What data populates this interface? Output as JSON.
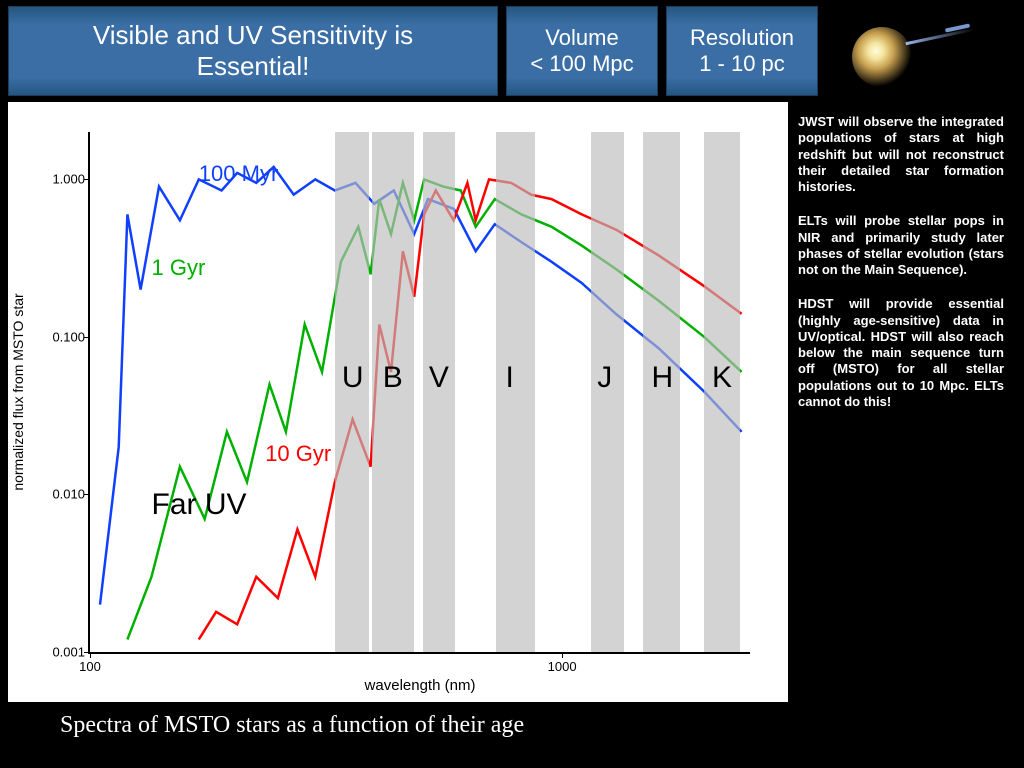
{
  "header": {
    "title_line1": "Visible and UV Sensitivity is",
    "title_line2": "Essential!",
    "volume_line1": "Volume",
    "volume_line2": "< 100 Mpc",
    "resolution_line1": "Resolution",
    "resolution_line2": "1 - 10 pc"
  },
  "colors": {
    "header_bg": "#3a6ea5",
    "bg": "#000000",
    "chart_bg": "#ffffff",
    "band": "#bbbbbb",
    "series_100myr": "#1040ff",
    "series_1gyr": "#00b000",
    "series_10gyr": "#ff0000"
  },
  "chart": {
    "type": "line",
    "title": "",
    "xlabel": "wavelength (nm)",
    "ylabel": "normalized flux from MSTO star",
    "xscale": "log",
    "yscale": "log",
    "xlim": [
      100,
      2500
    ],
    "ylim": [
      0.001,
      2.0
    ],
    "xticks": [
      100,
      1000
    ],
    "xtick_labels": [
      "100",
      "1000"
    ],
    "yticks": [
      1.0,
      0.1,
      0.01,
      0.001
    ],
    "ytick_labels": [
      "1.000",
      "0.100",
      "0.010",
      "0.001"
    ],
    "filter_bands": [
      {
        "name": "U",
        "center_nm": 360,
        "width_nm": 60
      },
      {
        "name": "B",
        "center_nm": 440,
        "width_nm": 90
      },
      {
        "name": "V",
        "center_nm": 550,
        "width_nm": 85
      },
      {
        "name": "I",
        "center_nm": 800,
        "width_nm": 150
      },
      {
        "name": "J",
        "center_nm": 1250,
        "width_nm": 200
      },
      {
        "name": "H",
        "center_nm": 1630,
        "width_nm": 290
      },
      {
        "name": "K",
        "center_nm": 2190,
        "width_nm": 390
      }
    ],
    "series": [
      {
        "name": "100 Myr",
        "color_key": "series_100myr",
        "label_pos_nm": 170,
        "label_pos_flux": 1.3,
        "points_nm_flux": [
          [
            105,
            0.002
          ],
          [
            115,
            0.02
          ],
          [
            120,
            0.6
          ],
          [
            128,
            0.2
          ],
          [
            140,
            0.9
          ],
          [
            155,
            0.55
          ],
          [
            170,
            1.0
          ],
          [
            190,
            0.85
          ],
          [
            205,
            1.1
          ],
          [
            225,
            0.95
          ],
          [
            245,
            1.2
          ],
          [
            270,
            0.8
          ],
          [
            300,
            1.0
          ],
          [
            330,
            0.85
          ],
          [
            365,
            0.95
          ],
          [
            400,
            0.7
          ],
          [
            440,
            0.85
          ],
          [
            486,
            0.45
          ],
          [
            520,
            0.75
          ],
          [
            590,
            0.65
          ],
          [
            656,
            0.35
          ],
          [
            720,
            0.52
          ],
          [
            820,
            0.4
          ],
          [
            950,
            0.3
          ],
          [
            1100,
            0.22
          ],
          [
            1300,
            0.14
          ],
          [
            1600,
            0.085
          ],
          [
            2000,
            0.045
          ],
          [
            2400,
            0.025
          ]
        ]
      },
      {
        "name": "1 Gyr",
        "color_key": "series_1gyr",
        "label_pos_nm": 135,
        "label_pos_flux": 0.33,
        "points_nm_flux": [
          [
            120,
            0.0012
          ],
          [
            135,
            0.003
          ],
          [
            155,
            0.015
          ],
          [
            175,
            0.007
          ],
          [
            195,
            0.025
          ],
          [
            215,
            0.012
          ],
          [
            240,
            0.05
          ],
          [
            260,
            0.025
          ],
          [
            285,
            0.12
          ],
          [
            310,
            0.06
          ],
          [
            340,
            0.3
          ],
          [
            370,
            0.5
          ],
          [
            393,
            0.25
          ],
          [
            410,
            0.75
          ],
          [
            434,
            0.45
          ],
          [
            460,
            0.95
          ],
          [
            486,
            0.55
          ],
          [
            510,
            1.0
          ],
          [
            560,
            0.9
          ],
          [
            610,
            0.85
          ],
          [
            656,
            0.5
          ],
          [
            720,
            0.75
          ],
          [
            820,
            0.6
          ],
          [
            950,
            0.5
          ],
          [
            1100,
            0.38
          ],
          [
            1300,
            0.27
          ],
          [
            1600,
            0.17
          ],
          [
            2000,
            0.1
          ],
          [
            2400,
            0.06
          ]
        ]
      },
      {
        "name": "10 Gyr",
        "color_key": "series_10gyr",
        "label_pos_nm": 235,
        "label_pos_flux": 0.022,
        "points_nm_flux": [
          [
            170,
            0.0012
          ],
          [
            185,
            0.0018
          ],
          [
            205,
            0.0015
          ],
          [
            225,
            0.003
          ],
          [
            250,
            0.0022
          ],
          [
            275,
            0.006
          ],
          [
            300,
            0.003
          ],
          [
            330,
            0.012
          ],
          [
            360,
            0.03
          ],
          [
            393,
            0.015
          ],
          [
            410,
            0.12
          ],
          [
            434,
            0.06
          ],
          [
            460,
            0.35
          ],
          [
            486,
            0.18
          ],
          [
            510,
            0.6
          ],
          [
            540,
            0.85
          ],
          [
            589,
            0.55
          ],
          [
            630,
            0.95
          ],
          [
            656,
            0.55
          ],
          [
            700,
            1.0
          ],
          [
            780,
            0.95
          ],
          [
            860,
            0.8
          ],
          [
            950,
            0.75
          ],
          [
            1100,
            0.6
          ],
          [
            1300,
            0.48
          ],
          [
            1600,
            0.33
          ],
          [
            2000,
            0.21
          ],
          [
            2400,
            0.14
          ]
        ]
      }
    ],
    "annotation_faruv": {
      "text": "Far UV",
      "pos_nm": 135,
      "pos_flux": 0.011
    }
  },
  "sidebar": {
    "p1": "JWST will observe the integrated populations of stars at high redshift but will not reconstruct their detailed star formation histories.",
    "p2": "ELTs will probe stellar pops in NIR and primarily study later phases of stellar evolution (stars not on the Main Sequence).",
    "p3": "HDST will provide essential (highly age-sensitive) data in UV/optical. HDST will also reach below the main sequence turn off (MSTO) for all stellar populations out to 10 Mpc. ELTs cannot do this!"
  },
  "caption": "Spectra of MSTO stars as a function of their age"
}
